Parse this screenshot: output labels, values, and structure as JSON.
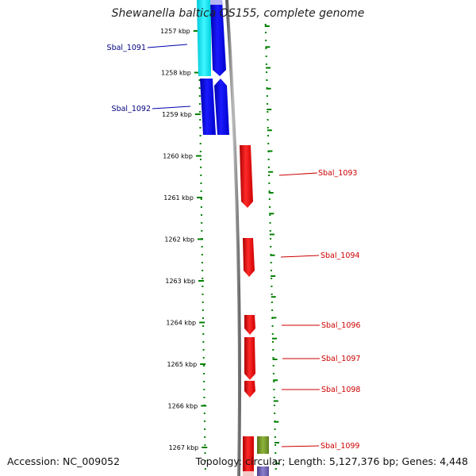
{
  "title": "Shewanella baltica OS155, complete genome",
  "accession": "Accession: NC_009052",
  "topology": "Topology: circular; Length: 5,127,376 bp; Genes: 4,448",
  "ruler": {
    "ticks": [
      "1257 kbp",
      "1258 kbp",
      "1259 kbp",
      "1260 kbp",
      "1261 kbp",
      "1262 kbp",
      "1263 kbp",
      "1264 kbp",
      "1265 kbp",
      "1266 kbp",
      "1267 kbp"
    ]
  },
  "genes": [
    {
      "label": "Sbal_1091",
      "strand": "reverse",
      "color": "#0000cc"
    },
    {
      "label": "Sbal_1092",
      "strand": "reverse",
      "color": "#0000cc"
    },
    {
      "label": "Sbal_1093",
      "strand": "forward",
      "color": "#cc0000"
    },
    {
      "label": "Sbal_1094",
      "strand": "forward",
      "color": "#cc0000"
    },
    {
      "label": "Sbal_1096",
      "strand": "forward",
      "color": "#cc0000"
    },
    {
      "label": "Sbal_1097",
      "strand": "forward",
      "color": "#cc0000"
    },
    {
      "label": "Sbal_1098",
      "strand": "forward",
      "color": "#cc0000"
    },
    {
      "label": "Sbal_1099",
      "strand": "forward",
      "color": "#cc0000"
    }
  ],
  "colors": {
    "forward_gene": "#ff0000",
    "reverse_gene": "#0000ee",
    "reverse_rna": "#00e5ee",
    "other_feature": "#6b8e23",
    "backbone": "#888888",
    "tick": "#008000"
  }
}
